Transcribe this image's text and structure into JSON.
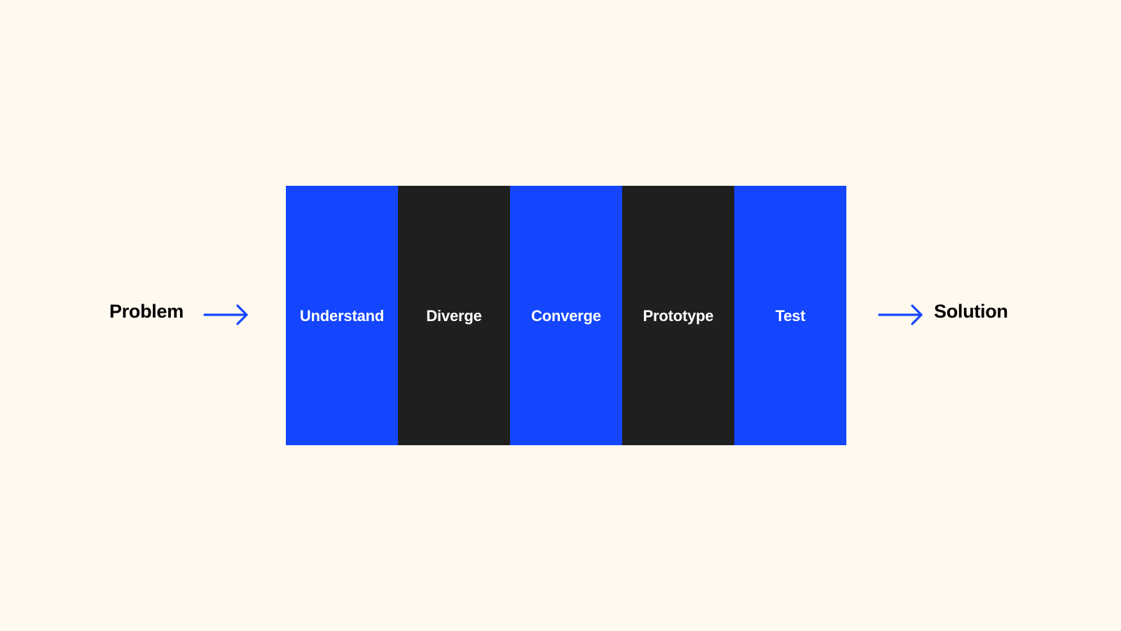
{
  "input": {
    "label": "Problem"
  },
  "output": {
    "label": "Solution"
  },
  "colors": {
    "background": "#FFF9EF",
    "blue": "#1446FF",
    "dark": "#1F1F1F",
    "arrow": "#1446FF",
    "text_dark": "#000000",
    "text_light": "#FFFFFF"
  },
  "phases": [
    {
      "label": "Understand",
      "color": "#1446FF"
    },
    {
      "label": "Diverge",
      "color": "#1F1F1F"
    },
    {
      "label": "Converge",
      "color": "#1446FF"
    },
    {
      "label": "Prototype",
      "color": "#1F1F1F"
    },
    {
      "label": "Test",
      "color": "#1446FF"
    }
  ],
  "icons": {
    "arrow_in": "arrow-right-icon",
    "arrow_out": "arrow-right-icon"
  }
}
